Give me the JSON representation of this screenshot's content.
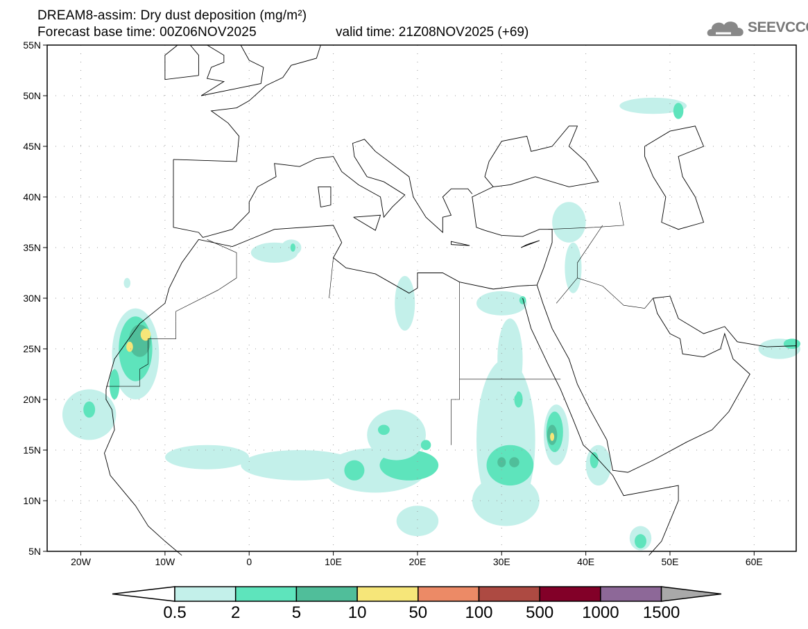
{
  "header": {
    "title": "DREAM8-assim: Dry dust deposition (mg/m²)",
    "base_time": "Forecast base time: 00Z06NOV2025",
    "valid_time": "valid time: 21Z08NOV2025 (+69)",
    "logo_text": "SEEVCCC"
  },
  "map": {
    "lat_labels": [
      "55N",
      "50N",
      "45N",
      "40N",
      "35N",
      "30N",
      "25N",
      "20N",
      "15N",
      "10N",
      "5N"
    ],
    "lat_values": [
      55,
      50,
      45,
      40,
      35,
      30,
      25,
      20,
      15,
      10,
      5
    ],
    "lon_labels": [
      "20W",
      "10W",
      "0",
      "10E",
      "20E",
      "30E",
      "40E",
      "50E",
      "60E"
    ],
    "lon_values": [
      -20,
      -10,
      0,
      10,
      20,
      30,
      40,
      50,
      60
    ],
    "lon_range": [
      -24,
      65
    ],
    "lat_range": [
      5,
      55
    ],
    "dust_patches": [
      {
        "lon": -19,
        "lat": 18.5,
        "rlon": 3.2,
        "rlat": 2.5,
        "level": 1
      },
      {
        "lon": -19,
        "lat": 19,
        "rlon": 0.7,
        "rlat": 0.8,
        "level": 2
      },
      {
        "lon": -13.5,
        "lat": 24.5,
        "rlon": 2.8,
        "rlat": 4.5,
        "level": 1
      },
      {
        "lon": -13.5,
        "lat": 25,
        "rlon": 2,
        "rlat": 3.2,
        "level": 2
      },
      {
        "lon": -13,
        "lat": 25.8,
        "rlon": 1.3,
        "rlat": 1.6,
        "level": 3
      },
      {
        "lon": -12.3,
        "lat": 26.4,
        "rlon": 0.6,
        "rlat": 0.6,
        "level": 4
      },
      {
        "lon": -14.2,
        "lat": 25.2,
        "rlon": 0.4,
        "rlat": 0.5,
        "level": 4
      },
      {
        "lon": -16,
        "lat": 21.5,
        "rlon": 0.6,
        "rlat": 1.5,
        "level": 2
      },
      {
        "lon": -14.5,
        "lat": 31.5,
        "rlon": 0.4,
        "rlat": 0.5,
        "level": 1
      },
      {
        "lon": -5,
        "lat": 14.3,
        "rlon": 5,
        "rlat": 1.2,
        "level": 1
      },
      {
        "lon": 6,
        "lat": 13.5,
        "rlon": 7,
        "rlat": 1.5,
        "level": 1
      },
      {
        "lon": 15,
        "lat": 13,
        "rlon": 6,
        "rlat": 2.2,
        "level": 1
      },
      {
        "lon": 12.5,
        "lat": 13,
        "rlon": 1.2,
        "rlat": 1,
        "level": 2
      },
      {
        "lon": 19,
        "lat": 13.5,
        "rlon": 3.5,
        "rlat": 1.5,
        "level": 2
      },
      {
        "lon": 17.5,
        "lat": 16.5,
        "rlon": 3.5,
        "rlat": 2.5,
        "level": 1
      },
      {
        "lon": 16,
        "lat": 17,
        "rlon": 0.7,
        "rlat": 0.5,
        "level": 2
      },
      {
        "lon": 21,
        "lat": 15.5,
        "rlon": 0.6,
        "rlat": 0.5,
        "level": 2
      },
      {
        "lon": 20,
        "lat": 8,
        "rlon": 2.5,
        "rlat": 1.5,
        "level": 1
      },
      {
        "lon": 30.5,
        "lat": 16,
        "rlon": 3.5,
        "rlat": 8,
        "level": 1
      },
      {
        "lon": 30.5,
        "lat": 10,
        "rlon": 4,
        "rlat": 2.5,
        "level": 1
      },
      {
        "lon": 31,
        "lat": 13.5,
        "rlon": 2.8,
        "rlat": 2,
        "level": 2
      },
      {
        "lon": 31.5,
        "lat": 13.8,
        "rlon": 0.6,
        "rlat": 0.5,
        "level": 3
      },
      {
        "lon": 30,
        "lat": 13.8,
        "rlon": 0.5,
        "rlat": 0.5,
        "level": 3
      },
      {
        "lon": 32,
        "lat": 20,
        "rlon": 0.5,
        "rlat": 0.8,
        "level": 2
      },
      {
        "lon": 31,
        "lat": 24,
        "rlon": 1.5,
        "rlat": 4,
        "level": 1
      },
      {
        "lon": 30,
        "lat": 29.5,
        "rlon": 3,
        "rlat": 1.2,
        "level": 1
      },
      {
        "lon": 32.5,
        "lat": 29.8,
        "rlon": 0.4,
        "rlat": 0.4,
        "level": 2
      },
      {
        "lon": 36.5,
        "lat": 16.5,
        "rlon": 1.5,
        "rlat": 3,
        "level": 1
      },
      {
        "lon": 36.3,
        "lat": 16.8,
        "rlon": 1,
        "rlat": 2,
        "level": 2
      },
      {
        "lon": 36,
        "lat": 16.5,
        "rlon": 0.6,
        "rlat": 1,
        "level": 3
      },
      {
        "lon": 36,
        "lat": 16.3,
        "rlon": 0.25,
        "rlat": 0.4,
        "level": 4
      },
      {
        "lon": 41.5,
        "lat": 13.5,
        "rlon": 1.5,
        "rlat": 2,
        "level": 1
      },
      {
        "lon": 41,
        "lat": 14,
        "rlon": 0.5,
        "rlat": 0.8,
        "level": 2
      },
      {
        "lon": 18.5,
        "lat": 29.5,
        "rlon": 1.2,
        "rlat": 2.7,
        "level": 1
      },
      {
        "lon": 3,
        "lat": 34.5,
        "rlon": 2.8,
        "rlat": 1,
        "level": 1
      },
      {
        "lon": 5,
        "lat": 35,
        "rlon": 1.2,
        "rlat": 0.8,
        "level": 1
      },
      {
        "lon": 5.2,
        "lat": 35,
        "rlon": 0.3,
        "rlat": 0.4,
        "level": 2
      },
      {
        "lon": 38,
        "lat": 37.5,
        "rlon": 2,
        "rlat": 2,
        "level": 1
      },
      {
        "lon": 38.5,
        "lat": 33,
        "rlon": 1,
        "rlat": 2.5,
        "level": 1
      },
      {
        "lon": 48,
        "lat": 49,
        "rlon": 4,
        "rlat": 0.8,
        "level": 1
      },
      {
        "lon": 51,
        "lat": 48.5,
        "rlon": 0.6,
        "rlat": 0.8,
        "level": 2
      },
      {
        "lon": 63,
        "lat": 25,
        "rlon": 2.5,
        "rlat": 1,
        "level": 1
      },
      {
        "lon": 64.5,
        "lat": 25.5,
        "rlon": 1,
        "rlat": 0.5,
        "level": 2
      },
      {
        "lon": 46.5,
        "lat": 6.3,
        "rlon": 1.3,
        "rlat": 1.2,
        "level": 1
      },
      {
        "lon": 46.5,
        "lat": 6,
        "rlon": 0.7,
        "rlat": 0.7,
        "level": 2
      }
    ]
  },
  "colorbar": {
    "labels": [
      "0.5",
      "2",
      "5",
      "10",
      "50",
      "100",
      "500",
      "1000",
      "1500"
    ],
    "colors": [
      "#c3f0ea",
      "#5ee4bc",
      "#50be9a",
      "#f6e679",
      "#ec8a66",
      "#ad4a42",
      "#820028",
      "#8d6898"
    ],
    "under_color": "#ffffff",
    "over_color": "#a9a9a9"
  }
}
